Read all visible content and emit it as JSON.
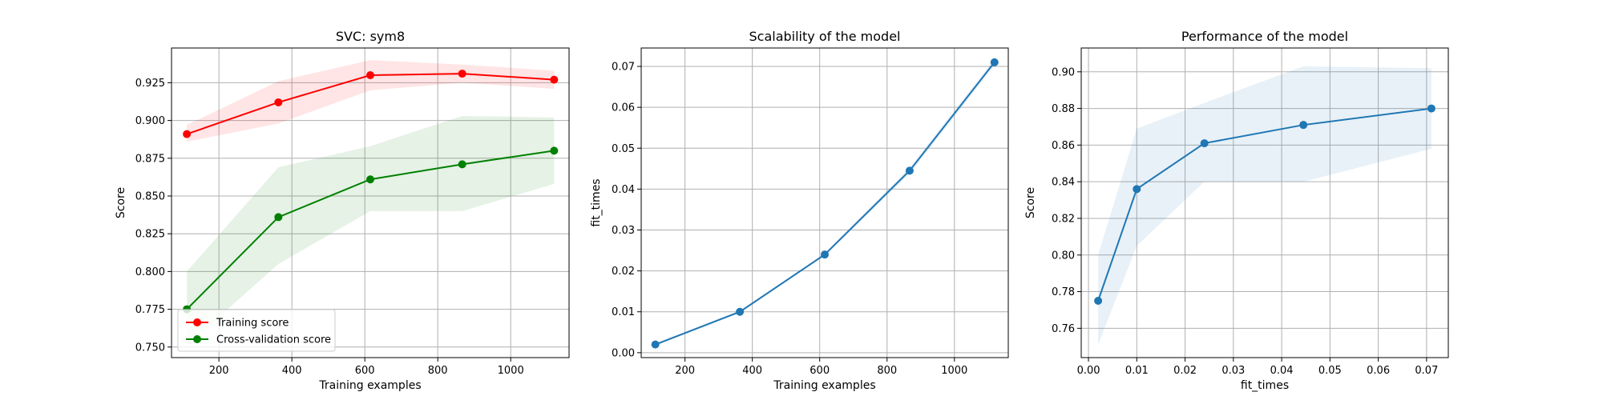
{
  "chart_data": [
    {
      "type": "line",
      "title": "SVC: sym8",
      "xlabel": "Training examples",
      "ylabel": "Score",
      "xlim": [
        70,
        1160
      ],
      "ylim": [
        0.743,
        0.948
      ],
      "xticks": [
        200,
        400,
        600,
        800,
        1000
      ],
      "yticks": [
        0.75,
        0.775,
        0.8,
        0.825,
        0.85,
        0.875,
        0.9,
        0.925
      ],
      "xtick_labels": [
        "200",
        "400",
        "600",
        "800",
        "1000"
      ],
      "ytick_labels": [
        "0.750",
        "0.775",
        "0.800",
        "0.825",
        "0.850",
        "0.875",
        "0.900",
        "0.925"
      ],
      "grid": true,
      "legend": "lower-left",
      "x": [
        112,
        363,
        615,
        867,
        1119
      ],
      "series": [
        {
          "name": "Training score",
          "color": "#ff0000",
          "fill_color": "#ff0000",
          "values": [
            0.891,
            0.912,
            0.93,
            0.931,
            0.927
          ],
          "upper": [
            0.897,
            0.926,
            0.94,
            0.937,
            0.933
          ],
          "lower": [
            0.886,
            0.898,
            0.92,
            0.925,
            0.921
          ]
        },
        {
          "name": "Cross-validation score",
          "color": "#008000",
          "fill_color": "#008000",
          "values": [
            0.775,
            0.836,
            0.861,
            0.871,
            0.88
          ],
          "upper": [
            0.8,
            0.869,
            0.883,
            0.903,
            0.902
          ],
          "lower": [
            0.751,
            0.805,
            0.84,
            0.84,
            0.858
          ]
        }
      ]
    },
    {
      "type": "line",
      "title": "Scalability of the model",
      "xlabel": "Training examples",
      "ylabel": "fit_times",
      "xlim": [
        70,
        1160
      ],
      "ylim": [
        -0.0012,
        0.0745
      ],
      "xticks": [
        200,
        400,
        600,
        800,
        1000
      ],
      "yticks": [
        0.0,
        0.01,
        0.02,
        0.03,
        0.04,
        0.05,
        0.06,
        0.07
      ],
      "xtick_labels": [
        "200",
        "400",
        "600",
        "800",
        "1000"
      ],
      "ytick_labels": [
        "0.00",
        "0.01",
        "0.02",
        "0.03",
        "0.04",
        "0.05",
        "0.06",
        "0.07"
      ],
      "grid": true,
      "x": [
        112,
        363,
        615,
        867,
        1119
      ],
      "series": [
        {
          "color": "#1f77b4",
          "fill_color": "#1f77b4",
          "values": [
            0.002,
            0.01,
            0.024,
            0.0445,
            0.071
          ],
          "upper": [
            0.0023,
            0.0103,
            0.0243,
            0.0453,
            0.0718
          ],
          "lower": [
            0.0017,
            0.0097,
            0.0237,
            0.0437,
            0.0702
          ]
        }
      ]
    },
    {
      "type": "line",
      "title": "Performance of the model",
      "xlabel": "fit_times",
      "ylabel": "Score",
      "xlim": [
        -0.0015,
        0.0745
      ],
      "ylim": [
        0.744,
        0.913
      ],
      "xticks": [
        0.0,
        0.01,
        0.02,
        0.03,
        0.04,
        0.05,
        0.06,
        0.07
      ],
      "yticks": [
        0.76,
        0.78,
        0.8,
        0.82,
        0.84,
        0.86,
        0.88,
        0.9
      ],
      "xtick_labels": [
        "0.00",
        "0.01",
        "0.02",
        "0.03",
        "0.04",
        "0.05",
        "0.06",
        "0.07"
      ],
      "ytick_labels": [
        "0.76",
        "0.78",
        "0.80",
        "0.82",
        "0.84",
        "0.86",
        "0.88",
        "0.90"
      ],
      "grid": true,
      "x": [
        0.002,
        0.01,
        0.024,
        0.0445,
        0.071
      ],
      "series": [
        {
          "color": "#1f77b4",
          "fill_color": "#1f77b4",
          "values": [
            0.775,
            0.836,
            0.861,
            0.871,
            0.88
          ],
          "upper": [
            0.8,
            0.869,
            0.883,
            0.903,
            0.902
          ],
          "lower": [
            0.751,
            0.805,
            0.84,
            0.84,
            0.858
          ]
        }
      ]
    }
  ]
}
